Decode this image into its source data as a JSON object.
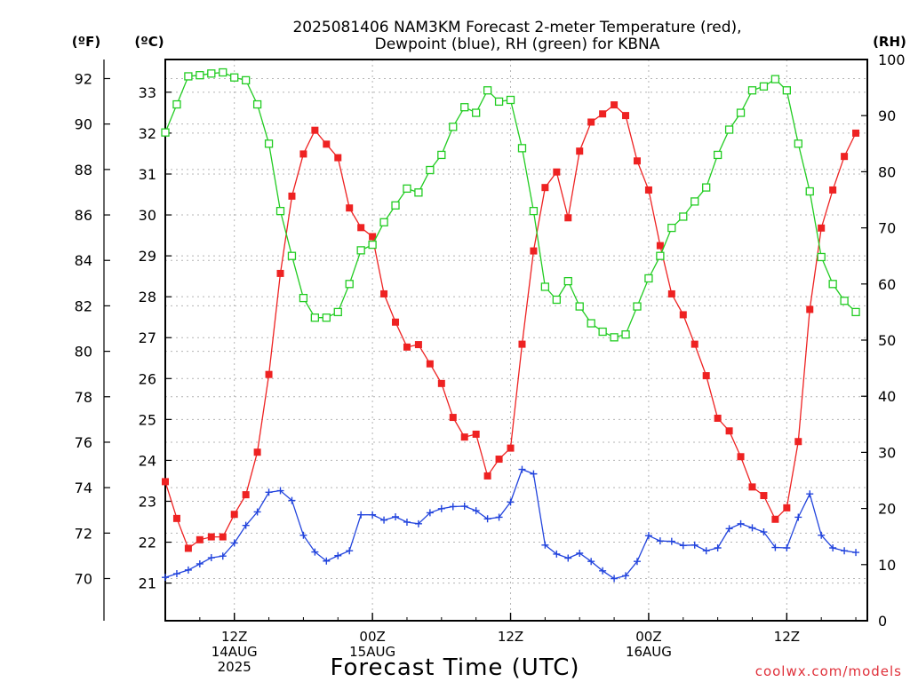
{
  "chart_data": {
    "type": "line",
    "title": "2025081406 NAM3KM Forecast 2-meter Temperature (red),",
    "subtitle": "Dewpoint (blue), RH (green) for KBNA",
    "xlabel": "Forecast Time (UTC)",
    "watermark": "coolwx.com/models",
    "y_left_outer": {
      "unit_label": "(ºF)",
      "ticks": [
        70,
        72,
        74,
        76,
        78,
        80,
        82,
        84,
        86,
        88,
        90,
        92
      ]
    },
    "y_left_inner": {
      "unit_label": "(ºC)",
      "range": [
        20.08,
        33.8
      ],
      "ticks": [
        21,
        22,
        23,
        24,
        25,
        26,
        27,
        28,
        29,
        30,
        31,
        32,
        33
      ]
    },
    "y_right": {
      "unit_label": "(RH)",
      "range": [
        0,
        100
      ],
      "ticks": [
        0,
        10,
        20,
        30,
        40,
        50,
        60,
        70,
        80,
        90,
        100
      ]
    },
    "x_range_hours": [
      0,
      61
    ],
    "x_ticks": [
      {
        "hour": 6,
        "lines": [
          "12Z",
          "14AUG",
          "2025"
        ]
      },
      {
        "hour": 18,
        "lines": [
          "00Z",
          "15AUG"
        ]
      },
      {
        "hour": 30,
        "lines": [
          "12Z"
        ]
      },
      {
        "hour": 42,
        "lines": [
          "00Z",
          "16AUG"
        ]
      },
      {
        "hour": 54,
        "lines": [
          "12Z"
        ]
      }
    ],
    "grid": true,
    "series": [
      {
        "name": "Temperature",
        "axis": "celsius",
        "color": "#ee2222",
        "marker": "filled-square",
        "values": [
          23.48,
          22.58,
          21.85,
          22.06,
          22.13,
          22.13,
          22.68,
          23.16,
          24.2,
          26.1,
          28.57,
          30.46,
          31.49,
          32.07,
          31.73,
          31.4,
          30.17,
          29.69,
          29.47,
          28.07,
          27.38,
          26.77,
          26.83,
          26.36,
          25.88,
          25.05,
          24.57,
          24.64,
          23.62,
          24.03,
          24.3,
          26.84,
          29.12,
          30.67,
          31.05,
          29.93,
          31.56,
          32.27,
          32.47,
          32.69,
          32.43,
          31.32,
          30.61,
          29.25,
          28.07,
          27.56,
          26.84,
          26.07,
          25.03,
          24.72,
          24.09,
          23.35,
          23.14,
          22.56,
          22.84,
          24.46,
          27.69,
          29.68,
          30.61,
          31.43,
          32.0
        ]
      },
      {
        "name": "Dewpoint",
        "axis": "celsius",
        "color": "#2244dd",
        "marker": "plus",
        "values": [
          21.14,
          21.23,
          21.32,
          21.47,
          21.62,
          21.66,
          21.98,
          22.41,
          22.74,
          23.22,
          23.26,
          23.02,
          22.17,
          21.76,
          21.54,
          21.67,
          21.79,
          22.67,
          22.67,
          22.54,
          22.62,
          22.49,
          22.45,
          22.72,
          22.82,
          22.87,
          22.88,
          22.77,
          22.57,
          22.61,
          22.98,
          23.78,
          23.67,
          21.93,
          21.71,
          21.61,
          21.73,
          21.53,
          21.3,
          21.11,
          21.18,
          21.53,
          22.16,
          22.03,
          22.02,
          21.92,
          21.93,
          21.79,
          21.86,
          22.33,
          22.45,
          22.35,
          22.25,
          21.87,
          21.86,
          22.61,
          23.18,
          22.17,
          21.86,
          21.79,
          21.75
        ]
      },
      {
        "name": "RH",
        "axis": "rh",
        "color": "#22cc22",
        "marker": "open-square",
        "values": [
          87.0,
          92.0,
          97.0,
          97.2,
          97.5,
          97.7,
          96.8,
          96.3,
          92.0,
          85.0,
          73.0,
          65.0,
          57.5,
          54.0,
          54.0,
          55.0,
          60.0,
          66.0,
          67.0,
          71.0,
          74.0,
          77.0,
          76.3,
          80.3,
          83.0,
          88.0,
          91.5,
          90.5,
          94.5,
          92.5,
          92.8,
          84.2,
          73.0,
          59.5,
          57.2,
          60.5,
          56.0,
          53.0,
          51.5,
          50.5,
          51.0,
          56.0,
          61.0,
          65.0,
          70.0,
          72.0,
          74.7,
          77.2,
          83.0,
          87.5,
          90.5,
          94.5,
          95.2,
          96.5,
          94.5,
          85.0,
          76.5,
          64.8,
          60.0,
          57.0,
          55.0
        ]
      }
    ]
  }
}
